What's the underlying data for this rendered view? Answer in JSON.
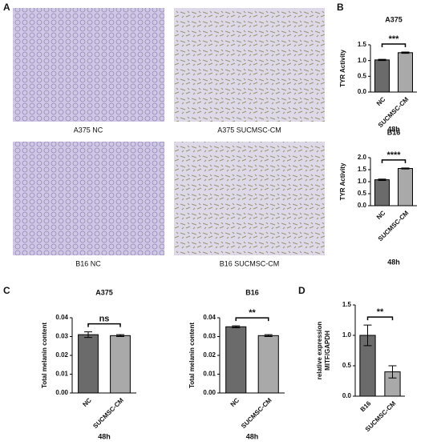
{
  "panel_labels": [
    "A",
    "B",
    "C",
    "D"
  ],
  "images": [
    {
      "label": "A375 NC"
    },
    {
      "label": "A375 SUCMSC-CM"
    },
    {
      "label": "B16 NC"
    },
    {
      "label": "B16 SUCMSC-CM"
    }
  ],
  "chart_data": [
    {
      "type": "bar",
      "title": "A375",
      "ylabel": [
        "TYR Activity"
      ],
      "xlabel": "48h",
      "significance": "***",
      "categories": [
        "NC",
        "SUCMSC-CM"
      ],
      "values": [
        1.02,
        1.25
      ],
      "errors": [
        0.02,
        0.02
      ],
      "colors": [
        "#6b6b6b",
        "#a9a9a9"
      ],
      "ylim": [
        0,
        1.5
      ],
      "yticks": [
        {
          "value": 0,
          "label": "0.0"
        },
        0.5,
        {
          "value": 1,
          "label": "1.0"
        },
        1.5
      ]
    },
    {
      "type": "bar",
      "title": "B16",
      "ylabel": [
        "TYR Activity"
      ],
      "xlabel": "48h",
      "significance": "****",
      "categories": [
        "NC",
        "SUCMSC-CM"
      ],
      "values": [
        1.08,
        1.55
      ],
      "errors": [
        0.03,
        0.02
      ],
      "colors": [
        "#6b6b6b",
        "#a9a9a9"
      ],
      "ylim": [
        0,
        2
      ],
      "yticks": [
        {
          "value": 0,
          "label": "0.0"
        },
        0.5,
        {
          "value": 1,
          "label": "1.0"
        },
        1.5,
        {
          "value": 2,
          "label": "2.0"
        }
      ]
    },
    {
      "type": "bar",
      "title": "A375",
      "ylabel": [
        "Total melanin content"
      ],
      "xlabel": "48h",
      "significance": "ns",
      "categories": [
        "NC",
        "SUCMSC-CM"
      ],
      "values": [
        0.031,
        0.0305
      ],
      "errors": [
        0.0015,
        0.0005
      ],
      "colors": [
        "#6b6b6b",
        "#a9a9a9"
      ],
      "ylim": [
        0,
        0.04
      ],
      "yticks": [
        {
          "value": 0,
          "label": "0.00"
        },
        0.01,
        0.02,
        0.03,
        0.04
      ]
    },
    {
      "type": "bar",
      "title": "B16",
      "ylabel": [
        "Total melanin content"
      ],
      "xlabel": "48h",
      "significance": "**",
      "categories": [
        "NC",
        "SUCMSC-CM"
      ],
      "values": [
        0.0352,
        0.0305
      ],
      "errors": [
        0.0005,
        0.0005
      ],
      "colors": [
        "#6b6b6b",
        "#a9a9a9"
      ],
      "ylim": [
        0,
        0.04
      ],
      "yticks": [
        {
          "value": 0,
          "label": "0.00"
        },
        0.01,
        0.02,
        0.03,
        0.04
      ]
    },
    {
      "type": "bar",
      "ylabel": [
        "relative expression",
        "MITF/GAPDH"
      ],
      "significance": "**",
      "categories": [
        "B16",
        "SUCMSC-CM"
      ],
      "values": [
        1.0,
        0.4
      ],
      "errors": [
        0.17,
        0.1
      ],
      "colors": [
        "#6b6b6b",
        "#a9a9a9"
      ],
      "ylim": [
        0,
        1.5
      ],
      "yticks": [
        {
          "value": 0,
          "label": "0.0"
        },
        0.5,
        {
          "value": 1,
          "label": "1.0"
        },
        1.5
      ]
    }
  ]
}
